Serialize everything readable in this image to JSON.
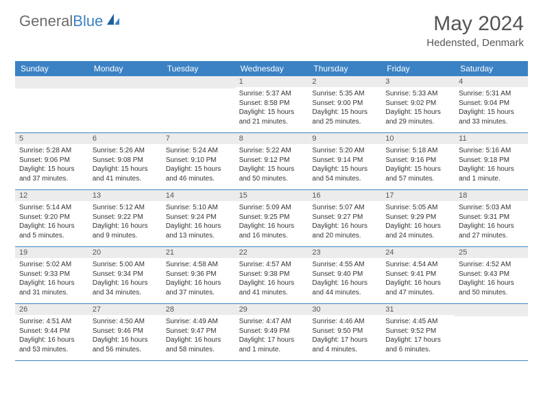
{
  "logo": {
    "text_a": "General",
    "text_b": "Blue"
  },
  "title": "May 2024",
  "location": "Hedensted, Denmark",
  "colors": {
    "header_bg": "#3b82c4",
    "header_text": "#ffffff",
    "day_header_bg": "#ececec",
    "row_border": "#3b82c4",
    "text": "#333333",
    "title_text": "#555555"
  },
  "weekdays": [
    "Sunday",
    "Monday",
    "Tuesday",
    "Wednesday",
    "Thursday",
    "Friday",
    "Saturday"
  ],
  "weeks": [
    [
      null,
      null,
      null,
      {
        "n": "1",
        "sr": "Sunrise: 5:37 AM",
        "ss": "Sunset: 8:58 PM",
        "dl1": "Daylight: 15 hours",
        "dl2": "and 21 minutes."
      },
      {
        "n": "2",
        "sr": "Sunrise: 5:35 AM",
        "ss": "Sunset: 9:00 PM",
        "dl1": "Daylight: 15 hours",
        "dl2": "and 25 minutes."
      },
      {
        "n": "3",
        "sr": "Sunrise: 5:33 AM",
        "ss": "Sunset: 9:02 PM",
        "dl1": "Daylight: 15 hours",
        "dl2": "and 29 minutes."
      },
      {
        "n": "4",
        "sr": "Sunrise: 5:31 AM",
        "ss": "Sunset: 9:04 PM",
        "dl1": "Daylight: 15 hours",
        "dl2": "and 33 minutes."
      }
    ],
    [
      {
        "n": "5",
        "sr": "Sunrise: 5:28 AM",
        "ss": "Sunset: 9:06 PM",
        "dl1": "Daylight: 15 hours",
        "dl2": "and 37 minutes."
      },
      {
        "n": "6",
        "sr": "Sunrise: 5:26 AM",
        "ss": "Sunset: 9:08 PM",
        "dl1": "Daylight: 15 hours",
        "dl2": "and 41 minutes."
      },
      {
        "n": "7",
        "sr": "Sunrise: 5:24 AM",
        "ss": "Sunset: 9:10 PM",
        "dl1": "Daylight: 15 hours",
        "dl2": "and 46 minutes."
      },
      {
        "n": "8",
        "sr": "Sunrise: 5:22 AM",
        "ss": "Sunset: 9:12 PM",
        "dl1": "Daylight: 15 hours",
        "dl2": "and 50 minutes."
      },
      {
        "n": "9",
        "sr": "Sunrise: 5:20 AM",
        "ss": "Sunset: 9:14 PM",
        "dl1": "Daylight: 15 hours",
        "dl2": "and 54 minutes."
      },
      {
        "n": "10",
        "sr": "Sunrise: 5:18 AM",
        "ss": "Sunset: 9:16 PM",
        "dl1": "Daylight: 15 hours",
        "dl2": "and 57 minutes."
      },
      {
        "n": "11",
        "sr": "Sunrise: 5:16 AM",
        "ss": "Sunset: 9:18 PM",
        "dl1": "Daylight: 16 hours",
        "dl2": "and 1 minute."
      }
    ],
    [
      {
        "n": "12",
        "sr": "Sunrise: 5:14 AM",
        "ss": "Sunset: 9:20 PM",
        "dl1": "Daylight: 16 hours",
        "dl2": "and 5 minutes."
      },
      {
        "n": "13",
        "sr": "Sunrise: 5:12 AM",
        "ss": "Sunset: 9:22 PM",
        "dl1": "Daylight: 16 hours",
        "dl2": "and 9 minutes."
      },
      {
        "n": "14",
        "sr": "Sunrise: 5:10 AM",
        "ss": "Sunset: 9:24 PM",
        "dl1": "Daylight: 16 hours",
        "dl2": "and 13 minutes."
      },
      {
        "n": "15",
        "sr": "Sunrise: 5:09 AM",
        "ss": "Sunset: 9:25 PM",
        "dl1": "Daylight: 16 hours",
        "dl2": "and 16 minutes."
      },
      {
        "n": "16",
        "sr": "Sunrise: 5:07 AM",
        "ss": "Sunset: 9:27 PM",
        "dl1": "Daylight: 16 hours",
        "dl2": "and 20 minutes."
      },
      {
        "n": "17",
        "sr": "Sunrise: 5:05 AM",
        "ss": "Sunset: 9:29 PM",
        "dl1": "Daylight: 16 hours",
        "dl2": "and 24 minutes."
      },
      {
        "n": "18",
        "sr": "Sunrise: 5:03 AM",
        "ss": "Sunset: 9:31 PM",
        "dl1": "Daylight: 16 hours",
        "dl2": "and 27 minutes."
      }
    ],
    [
      {
        "n": "19",
        "sr": "Sunrise: 5:02 AM",
        "ss": "Sunset: 9:33 PM",
        "dl1": "Daylight: 16 hours",
        "dl2": "and 31 minutes."
      },
      {
        "n": "20",
        "sr": "Sunrise: 5:00 AM",
        "ss": "Sunset: 9:34 PM",
        "dl1": "Daylight: 16 hours",
        "dl2": "and 34 minutes."
      },
      {
        "n": "21",
        "sr": "Sunrise: 4:58 AM",
        "ss": "Sunset: 9:36 PM",
        "dl1": "Daylight: 16 hours",
        "dl2": "and 37 minutes."
      },
      {
        "n": "22",
        "sr": "Sunrise: 4:57 AM",
        "ss": "Sunset: 9:38 PM",
        "dl1": "Daylight: 16 hours",
        "dl2": "and 41 minutes."
      },
      {
        "n": "23",
        "sr": "Sunrise: 4:55 AM",
        "ss": "Sunset: 9:40 PM",
        "dl1": "Daylight: 16 hours",
        "dl2": "and 44 minutes."
      },
      {
        "n": "24",
        "sr": "Sunrise: 4:54 AM",
        "ss": "Sunset: 9:41 PM",
        "dl1": "Daylight: 16 hours",
        "dl2": "and 47 minutes."
      },
      {
        "n": "25",
        "sr": "Sunrise: 4:52 AM",
        "ss": "Sunset: 9:43 PM",
        "dl1": "Daylight: 16 hours",
        "dl2": "and 50 minutes."
      }
    ],
    [
      {
        "n": "26",
        "sr": "Sunrise: 4:51 AM",
        "ss": "Sunset: 9:44 PM",
        "dl1": "Daylight: 16 hours",
        "dl2": "and 53 minutes."
      },
      {
        "n": "27",
        "sr": "Sunrise: 4:50 AM",
        "ss": "Sunset: 9:46 PM",
        "dl1": "Daylight: 16 hours",
        "dl2": "and 56 minutes."
      },
      {
        "n": "28",
        "sr": "Sunrise: 4:49 AM",
        "ss": "Sunset: 9:47 PM",
        "dl1": "Daylight: 16 hours",
        "dl2": "and 58 minutes."
      },
      {
        "n": "29",
        "sr": "Sunrise: 4:47 AM",
        "ss": "Sunset: 9:49 PM",
        "dl1": "Daylight: 17 hours",
        "dl2": "and 1 minute."
      },
      {
        "n": "30",
        "sr": "Sunrise: 4:46 AM",
        "ss": "Sunset: 9:50 PM",
        "dl1": "Daylight: 17 hours",
        "dl2": "and 4 minutes."
      },
      {
        "n": "31",
        "sr": "Sunrise: 4:45 AM",
        "ss": "Sunset: 9:52 PM",
        "dl1": "Daylight: 17 hours",
        "dl2": "and 6 minutes."
      },
      null
    ]
  ]
}
